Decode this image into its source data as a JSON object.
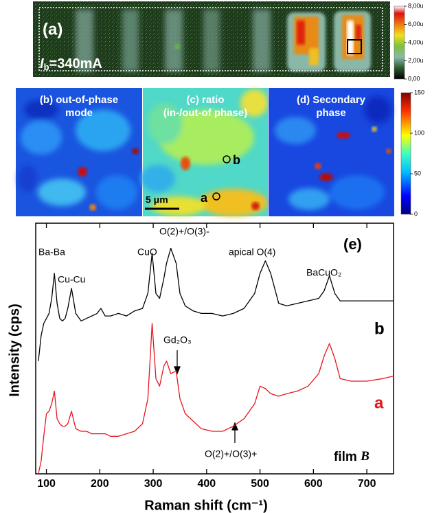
{
  "panels": {
    "a": {
      "label": "(a)",
      "current": {
        "symbol": "I",
        "sub": "b",
        "text": "=340mA"
      },
      "colorbar": {
        "clim": [
          0,
          8
        ],
        "ticks": [
          {
            "value": 8,
            "label": "8,00u"
          },
          {
            "value": 6,
            "label": "6,00u"
          },
          {
            "value": 4,
            "label": "4,00u"
          },
          {
            "value": 2,
            "label": "2,00u"
          },
          {
            "value": 0,
            "label": "0,00"
          }
        ]
      }
    },
    "b": {
      "lines": [
        "(b) out-of-phase",
        "mode"
      ]
    },
    "c": {
      "lines": [
        "(c) ratio",
        "(in-/out-of phase)"
      ],
      "scale_bar": "5 μm",
      "points": [
        "a",
        "b"
      ]
    },
    "d": {
      "lines": [
        "(d) Secondary",
        "phase"
      ],
      "colorbar": {
        "clim": [
          0,
          150
        ],
        "ticks": [
          150,
          100,
          50,
          0
        ]
      }
    }
  },
  "chart_data": {
    "type": "line",
    "label": "(e)",
    "x_label": "Raman shift (cm⁻¹)",
    "y_label": "Intensity (cps)",
    "xlim": [
      80,
      750
    ],
    "xticks": [
      100,
      200,
      300,
      400,
      500,
      600,
      700
    ],
    "ylim": [
      0,
      100
    ],
    "x": [
      85,
      90,
      95,
      100,
      105,
      110,
      115,
      120,
      125,
      130,
      135,
      140,
      147,
      155,
      165,
      175,
      185,
      195,
      202,
      210,
      220,
      235,
      250,
      265,
      280,
      290,
      298,
      305,
      312,
      320,
      325,
      333,
      343,
      350,
      360,
      375,
      390,
      410,
      430,
      450,
      470,
      490,
      500,
      510,
      520,
      535,
      550,
      570,
      590,
      610,
      620,
      630,
      640,
      650,
      670,
      700,
      730,
      750
    ],
    "series": [
      {
        "name": "b",
        "color": "#000000",
        "values": [
          45,
          55,
          60,
          62,
          64,
          70,
          80,
          68,
          62,
          61,
          62,
          66,
          74,
          64,
          61,
          62,
          63,
          64,
          66,
          63,
          63,
          64,
          63,
          65,
          66,
          72,
          88,
          72,
          70,
          78,
          84,
          90,
          84,
          72,
          67,
          65,
          64,
          64,
          63,
          64,
          66,
          72,
          80,
          85,
          80,
          68,
          67,
          68,
          69,
          70,
          73,
          79,
          72,
          69,
          69,
          69,
          69,
          69
        ]
      },
      {
        "name": "a",
        "color": "#e8141c",
        "values": [
          0,
          5,
          15,
          24,
          25,
          28,
          33,
          22,
          20,
          19,
          19,
          20,
          25,
          18,
          17,
          17,
          16,
          16,
          16,
          16,
          15,
          15,
          16,
          17,
          20,
          30,
          60,
          38,
          35,
          43,
          45,
          40,
          41,
          30,
          24,
          21,
          18,
          17,
          17,
          19,
          22,
          28,
          35,
          34,
          32,
          31,
          32,
          33,
          35,
          40,
          47,
          52,
          46,
          38,
          37,
          37,
          38,
          39
        ]
      }
    ],
    "annotations": [
      "Ba-Ba",
      "Cu-Cu",
      "CuO",
      "O(2)+/O(3)-",
      "apical O(4)",
      "BaCuO₂",
      "Gd₂O₃",
      "O(2)+/O(3)+"
    ],
    "film_label": {
      "text": "film",
      "symbol": "B"
    }
  }
}
